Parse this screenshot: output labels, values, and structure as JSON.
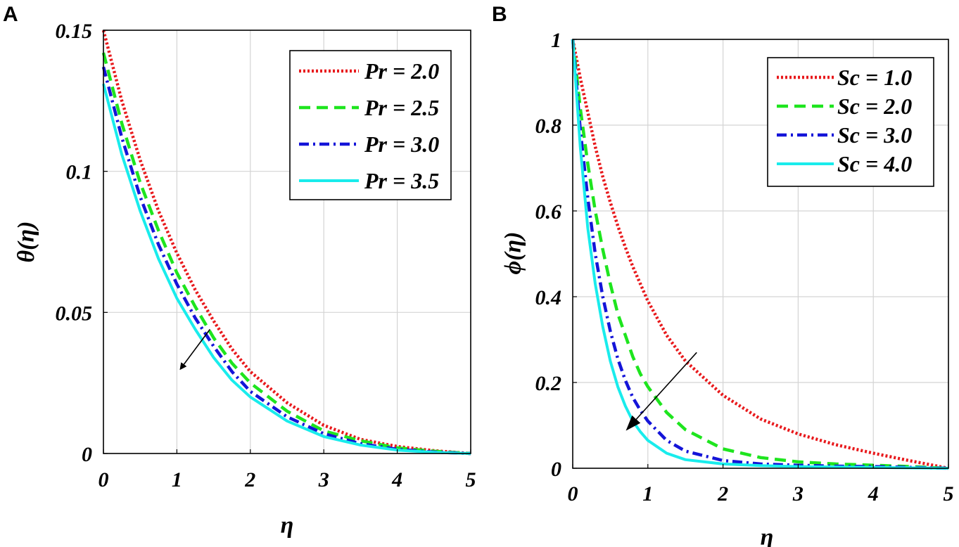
{
  "chart_data": [
    {
      "type": "line",
      "panel_label": "A",
      "xlabel": "η",
      "ylabel": "θ(η)",
      "xlim": [
        0,
        5
      ],
      "ylim": [
        0,
        0.15
      ],
      "xticks": [
        0,
        1,
        2,
        3,
        4,
        5
      ],
      "xtick_labels": [
        "0",
        "1",
        "2",
        "3",
        "4",
        "5"
      ],
      "yticks": [
        0,
        0.05,
        0.1,
        0.15
      ],
      "ytick_labels": [
        "0",
        "0.05",
        "0.1",
        "0.15"
      ],
      "grid": true,
      "legend_position": "top-right",
      "arrow": {
        "from": [
          1.45,
          0.044
        ],
        "to": [
          1.05,
          0.03
        ]
      },
      "x": [
        0,
        0.25,
        0.5,
        0.75,
        1,
        1.25,
        1.5,
        1.75,
        2,
        2.5,
        3,
        3.5,
        4,
        4.5,
        5
      ],
      "series": [
        {
          "name": "Pr = 2.0",
          "color": "#e8191c",
          "dash": "dotted",
          "values": [
            0.15,
            0.125,
            0.104,
            0.086,
            0.071,
            0.058,
            0.047,
            0.037,
            0.029,
            0.018,
            0.01,
            0.005,
            0.0025,
            0.001,
            0.0
          ]
        },
        {
          "name": "Pr = 2.5",
          "color": "#1ee51e",
          "dash": "dashed",
          "values": [
            0.142,
            0.117,
            0.096,
            0.079,
            0.064,
            0.052,
            0.041,
            0.032,
            0.025,
            0.015,
            0.008,
            0.0045,
            0.002,
            0.0008,
            0.0
          ]
        },
        {
          "name": "Pr = 3.0",
          "color": "#1414d8",
          "dash": "dashdot",
          "values": [
            0.137,
            0.112,
            0.091,
            0.074,
            0.06,
            0.048,
            0.038,
            0.029,
            0.022,
            0.013,
            0.007,
            0.0035,
            0.0015,
            0.0005,
            0.0
          ]
        },
        {
          "name": "Pr = 3.5",
          "color": "#19ecec",
          "dash": "solid",
          "values": [
            0.131,
            0.106,
            0.086,
            0.069,
            0.055,
            0.044,
            0.034,
            0.026,
            0.02,
            0.0115,
            0.006,
            0.003,
            0.0012,
            0.0004,
            0.0
          ]
        }
      ]
    },
    {
      "type": "line",
      "panel_label": "B",
      "xlabel": "η",
      "ylabel": "ϕ(η)",
      "xlim": [
        0,
        5
      ],
      "ylim": [
        0,
        1
      ],
      "xticks": [
        0,
        1,
        2,
        3,
        4,
        5
      ],
      "xtick_labels": [
        "0",
        "1",
        "2",
        "3",
        "4",
        "5"
      ],
      "yticks": [
        0,
        0.2,
        0.4,
        0.6,
        0.8,
        1
      ],
      "ytick_labels": [
        "0",
        "0.2",
        "0.4",
        "0.6",
        "0.8",
        "1"
      ],
      "grid": true,
      "legend_position": "top-right",
      "arrow": {
        "from": [
          1.65,
          0.27
        ],
        "to": [
          0.72,
          0.09
        ]
      },
      "x": [
        0,
        0.1,
        0.2,
        0.3,
        0.4,
        0.5,
        0.6,
        0.7,
        0.8,
        0.9,
        1,
        1.25,
        1.5,
        2,
        2.5,
        3,
        3.5,
        4,
        4.5,
        5
      ],
      "series": [
        {
          "name": "Sc = 1.0",
          "color": "#e8191c",
          "dash": "dotted",
          "values": [
            1.0,
            0.91,
            0.83,
            0.75,
            0.68,
            0.62,
            0.565,
            0.515,
            0.47,
            0.43,
            0.39,
            0.31,
            0.25,
            0.17,
            0.115,
            0.08,
            0.055,
            0.035,
            0.017,
            0.0
          ]
        },
        {
          "name": "Sc = 2.0",
          "color": "#1ee51e",
          "dash": "dashed",
          "values": [
            1.0,
            0.84,
            0.71,
            0.6,
            0.51,
            0.43,
            0.36,
            0.31,
            0.26,
            0.22,
            0.19,
            0.13,
            0.09,
            0.045,
            0.025,
            0.015,
            0.01,
            0.007,
            0.004,
            0.0
          ]
        },
        {
          "name": "Sc = 3.0",
          "color": "#1414d8",
          "dash": "dashdot",
          "values": [
            1.0,
            0.79,
            0.63,
            0.5,
            0.4,
            0.32,
            0.255,
            0.205,
            0.165,
            0.135,
            0.11,
            0.065,
            0.04,
            0.018,
            0.01,
            0.007,
            0.005,
            0.004,
            0.002,
            0.0
          ]
        },
        {
          "name": "Sc = 4.0",
          "color": "#19ecec",
          "dash": "solid",
          "values": [
            1.0,
            0.75,
            0.56,
            0.43,
            0.33,
            0.25,
            0.19,
            0.145,
            0.11,
            0.085,
            0.065,
            0.035,
            0.02,
            0.01,
            0.006,
            0.004,
            0.003,
            0.002,
            0.001,
            0.0
          ]
        }
      ]
    }
  ]
}
